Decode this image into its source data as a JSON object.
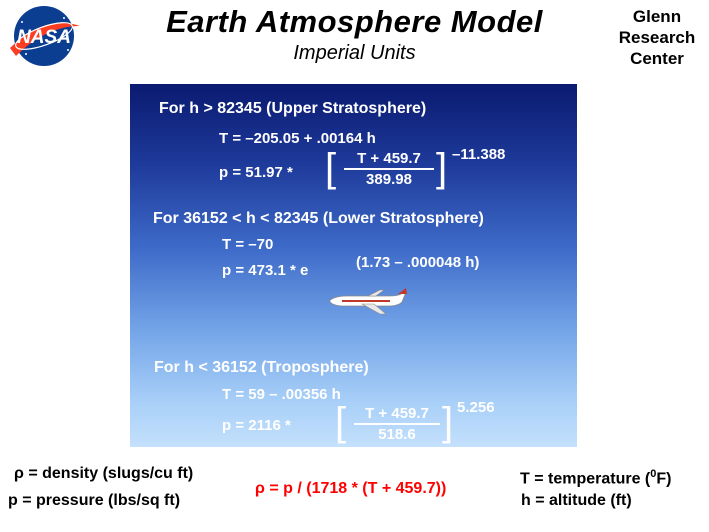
{
  "header": {
    "logo_text": "NASA",
    "title": "Earth  Atmosphere  Model",
    "subtitle": "Imperial  Units",
    "center_name": "Glenn Research Center"
  },
  "upper": {
    "heading": "For  h  >  82345   (Upper Stratosphere)",
    "temp": "T  =  –205.05 + .00164 h",
    "p_prefix": "p  =  51.97  *",
    "frac_num": "T +  459.7",
    "frac_den": "389.98",
    "exponent": "–11.388"
  },
  "lower": {
    "heading": "For  36152  <  h  <  82345  (Lower Stratosphere)",
    "temp": "T  =  –70",
    "p_prefix": "p  =  473.1   *   e",
    "exponent": "(1.73 – .000048 h)"
  },
  "tropo": {
    "heading": "For   h  <  36152  (Troposphere)",
    "temp": "T  =  59  –  .00356 h",
    "p_prefix": "p  =  2116   *",
    "frac_num": "T +  459.7",
    "frac_den": "518.6",
    "exponent": "5.256"
  },
  "legend": {
    "density": "ρ  =  density (slugs/cu ft)",
    "pressure": "p  =  pressure  (lbs/sq ft)",
    "density_formula": "ρ  =  p /  (1718  *  (T + 459.7))",
    "temperature_prefix": "T  =  temperature  (",
    "temperature_sup": "0",
    "temperature_suffix": "F)",
    "altitude": "h = altitude (ft)"
  },
  "colors": {
    "panel_top": "#0a1a70",
    "panel_bottom": "#c4e0fc",
    "formula_red": "#ff0000"
  }
}
